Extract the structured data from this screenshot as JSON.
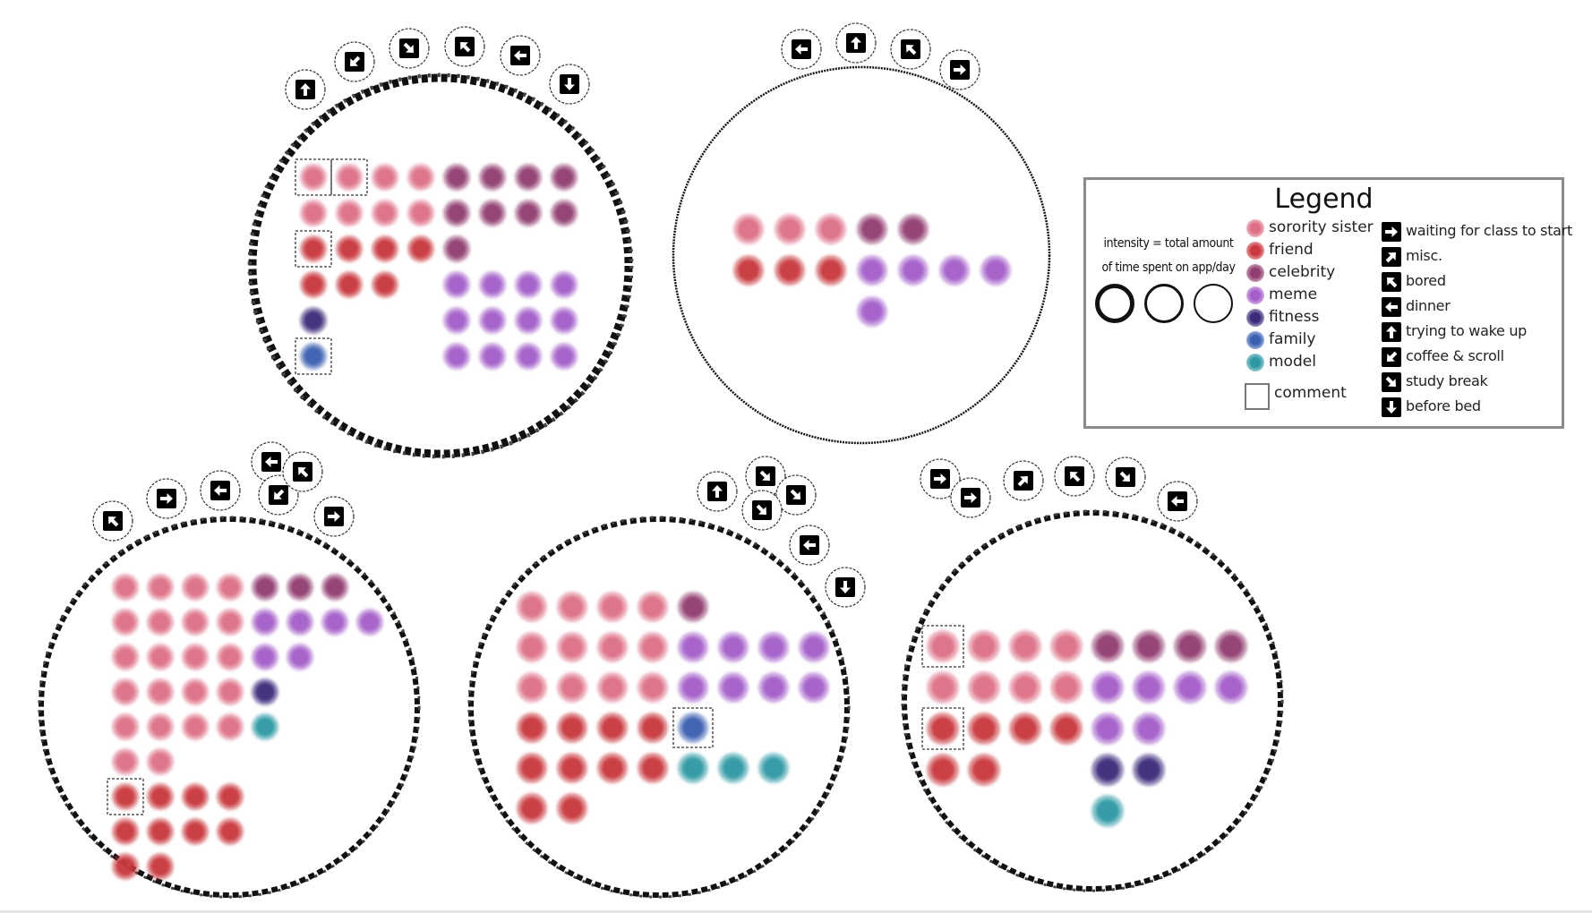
{
  "legend": {
    "title": "Legend",
    "intensity_line1": "intensity = total amount",
    "intensity_line2": "of time spent on app/day",
    "categories": [
      {
        "label": "sorority sister",
        "color": "#dd6f86"
      },
      {
        "label": "friend",
        "color": "#c8383e"
      },
      {
        "label": "celebrity",
        "color": "#913d6f"
      },
      {
        "label": "meme",
        "color": "#a45ec9"
      },
      {
        "label": "fitness",
        "color": "#3c2a7a"
      },
      {
        "label": "family",
        "color": "#3a5fb0"
      },
      {
        "label": "model",
        "color": "#2f98a4"
      }
    ],
    "comment_label": "comment",
    "activities": [
      {
        "icon": "right-arrow",
        "label": "waiting for class to  start"
      },
      {
        "icon": "up-right-arrow",
        "label": "misc."
      },
      {
        "icon": "up-left-arrow",
        "label": "bored"
      },
      {
        "icon": "left-arrow",
        "label": "dinner"
      },
      {
        "icon": "up-arrow",
        "label": "trying to wake up"
      },
      {
        "icon": "down-left-arrow",
        "label": "coffee & scroll"
      },
      {
        "icon": "down-right-arrow",
        "label": "study break"
      },
      {
        "icon": "down-arrow",
        "label": "before bed"
      }
    ],
    "intensity_levels": [
      "high",
      "medium",
      "low"
    ]
  },
  "days": [
    {
      "intensity": "high",
      "activities": [
        "up-arrow",
        "down-left-arrow",
        "down-right-arrow",
        "up-left-arrow",
        "left-arrow",
        "down-arrow"
      ],
      "dots": [
        [
          "sorority sister*",
          "sorority sister*",
          "sorority sister",
          "sorority sister",
          "celebrity",
          "celebrity",
          "celebrity",
          "celebrity"
        ],
        [
          "sorority sister",
          "sorority sister",
          "sorority sister",
          "sorority sister",
          "celebrity",
          "celebrity",
          "celebrity",
          "celebrity"
        ],
        [
          "friend*",
          "friend",
          "friend",
          "friend",
          "celebrity"
        ],
        [
          "friend",
          "friend",
          "friend",
          "",
          "meme",
          "meme",
          "meme",
          "meme"
        ],
        [
          "fitness",
          "",
          "",
          "",
          "meme",
          "meme",
          "meme",
          "meme"
        ],
        [
          "family*",
          "",
          "",
          "",
          "meme",
          "meme",
          "meme",
          "meme"
        ]
      ]
    },
    {
      "intensity": "low",
      "activities": [
        "left-arrow",
        "up-arrow",
        "up-left-arrow",
        "right-arrow"
      ],
      "dots": [
        [
          "sorority sister",
          "sorority sister",
          "sorority sister",
          "celebrity",
          "celebrity"
        ],
        [
          "friend",
          "friend",
          "friend",
          "meme",
          "meme",
          "meme",
          "meme"
        ],
        [
          "",
          "",
          "",
          "meme"
        ]
      ]
    },
    {
      "intensity": "medium",
      "activities": [
        "up-left-arrow",
        "right-arrow",
        "left-arrow",
        "left-arrow",
        "down-left-arrow",
        "up-left-arrow",
        "right-arrow"
      ],
      "dots": [
        [
          "sorority sister",
          "sorority sister",
          "sorority sister",
          "sorority sister",
          "celebrity",
          "celebrity",
          "celebrity"
        ],
        [
          "sorority sister",
          "sorority sister",
          "sorority sister",
          "sorority sister",
          "meme",
          "meme",
          "meme",
          "meme"
        ],
        [
          "sorority sister",
          "sorority sister",
          "sorority sister",
          "sorority sister",
          "meme",
          "meme"
        ],
        [
          "sorority sister",
          "sorority sister",
          "sorority sister",
          "sorority sister",
          "fitness"
        ],
        [
          "sorority sister",
          "sorority sister",
          "sorority sister",
          "sorority sister",
          "model"
        ],
        [
          "sorority sister",
          "sorority sister"
        ],
        [
          "friend*",
          "friend",
          "friend",
          "friend"
        ],
        [
          "friend",
          "friend",
          "friend",
          "friend"
        ],
        [
          "friend",
          "friend"
        ]
      ]
    },
    {
      "intensity": "medium",
      "activities": [
        "up-arrow",
        "down-right-arrow",
        "down-right-arrow",
        "down-right-arrow",
        "left-arrow",
        "down-arrow"
      ],
      "dots": [
        [
          "sorority sister",
          "sorority sister",
          "sorority sister",
          "sorority sister",
          "celebrity"
        ],
        [
          "sorority sister",
          "sorority sister",
          "sorority sister",
          "sorority sister",
          "meme",
          "meme",
          "meme",
          "meme"
        ],
        [
          "sorority sister",
          "sorority sister",
          "sorority sister",
          "sorority sister",
          "meme",
          "meme",
          "meme",
          "meme"
        ],
        [
          "friend",
          "friend",
          "friend",
          "friend",
          "family*"
        ],
        [
          "friend",
          "friend",
          "friend",
          "friend",
          "model",
          "model",
          "model"
        ],
        [
          "friend",
          "friend"
        ]
      ]
    },
    {
      "intensity": "medium",
      "activities": [
        "right-arrow",
        "right-arrow",
        "up-right-arrow",
        "up-left-arrow",
        "down-right-arrow",
        "left-arrow"
      ],
      "dots": [
        [
          "sorority sister*",
          "sorority sister",
          "sorority sister",
          "sorority sister",
          "celebrity",
          "celebrity",
          "celebrity",
          "celebrity"
        ],
        [
          "sorority sister",
          "sorority sister",
          "sorority sister",
          "sorority sister",
          "meme",
          "meme",
          "meme",
          "meme"
        ],
        [
          "friend*",
          "friend",
          "friend",
          "friend",
          "meme",
          "meme"
        ],
        [
          "friend",
          "friend",
          "",
          "",
          "fitness",
          "fitness"
        ],
        [
          "",
          "",
          "",
          "",
          "model"
        ]
      ]
    }
  ]
}
